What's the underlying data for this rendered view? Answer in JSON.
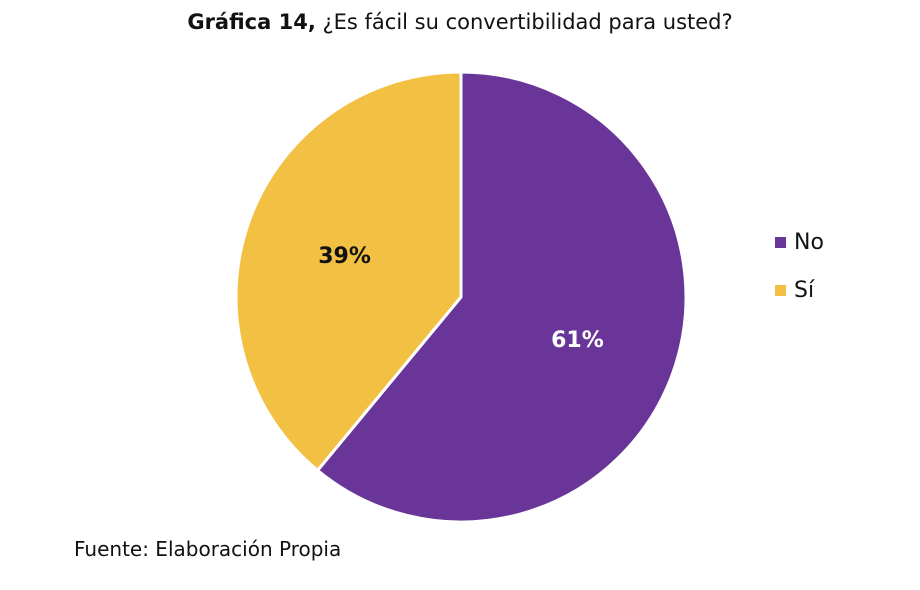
{
  "chart_data": {
    "type": "pie",
    "title_prefix": "Gráfica 14,",
    "title": "¿Es fácil su convertibilidad para usted?",
    "categories": [
      "No",
      "Sí"
    ],
    "values": [
      61,
      39
    ],
    "labels": [
      "61%",
      "39%"
    ],
    "colors": [
      "#6A3599",
      "#F2C043"
    ],
    "label_colors": [
      "#ffffff",
      "#111111"
    ],
    "legend_position": "right"
  },
  "footer": {
    "source": "Fuente: Elaboración Propia"
  }
}
